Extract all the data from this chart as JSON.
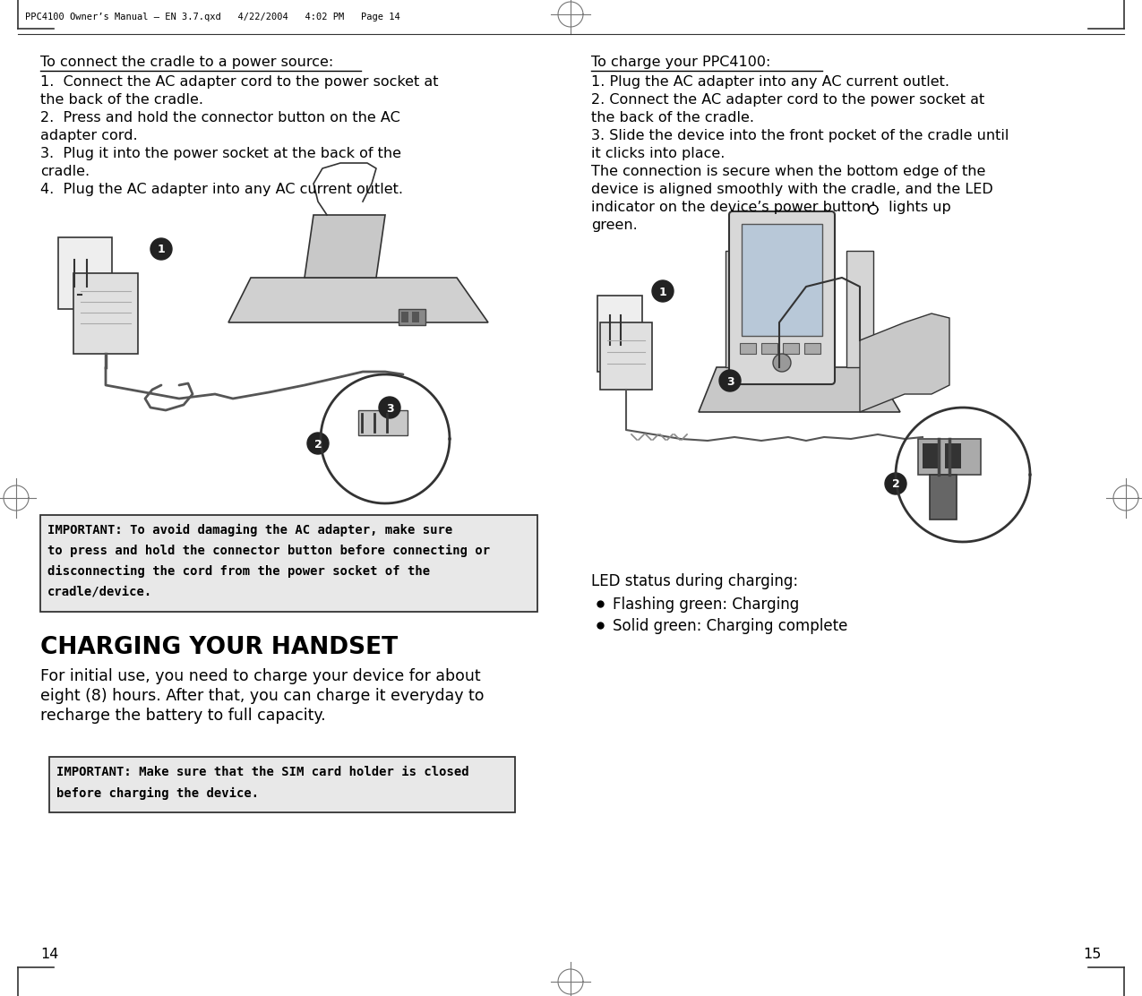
{
  "bg_color": "#ffffff",
  "border_color": "#000000",
  "text_color": "#000000",
  "header_text": "PPC4100 Owner’s Manual – EN 3.7.qxd   4/22/2004   4:02 PM   Page 14",
  "page_num_left": "14",
  "page_num_right": "15",
  "fig_w": 12.75,
  "fig_h": 11.12,
  "dpi": 100,
  "left_heading": "To connect the cradle to a power source:",
  "left_body": [
    "1.  Connect the AC adapter cord to the power socket at",
    "the back of the cradle.",
    "2.  Press and hold the connector button on the AC",
    "adapter cord.",
    "3.  Plug it into the power socket at the back of the",
    "cradle.",
    "4.  Plug the AC adapter into any AC current outlet."
  ],
  "right_heading": "To charge your PPC4100:",
  "right_body": [
    "1. Plug the AC adapter into any AC current outlet.",
    "2. Connect the AC adapter cord to the power socket at",
    "the back of the cradle.",
    "3. Slide the device into the front pocket of the cradle until",
    "it clicks into place.",
    "The connection is secure when the bottom edge of the",
    "device is aligned smoothly with the cradle, and the LED",
    "indicator on the device’s power button    lights up",
    "green."
  ],
  "imp1_lines": [
    "IMPORTANT: To avoid damaging the AC adapter, make sure",
    "to press and hold the connector button before connecting or",
    "disconnecting the cord from the power socket of the",
    "cradle/device."
  ],
  "charging_heading": "CHARGING YOUR HANDSET",
  "charging_body": [
    "For initial use, you need to charge your device for about",
    "eight (8) hours. After that, you can charge it everyday to",
    "recharge the battery to full capacity."
  ],
  "imp2_lines": [
    "IMPORTANT: Make sure that the SIM card holder is closed",
    "before charging the device."
  ],
  "led_heading": "LED status during charging:",
  "led_bullets": [
    "Flashing green: Charging",
    "Solid green: Charging complete"
  ],
  "box_bg": "#e8e8e8",
  "box_border": "#333333"
}
